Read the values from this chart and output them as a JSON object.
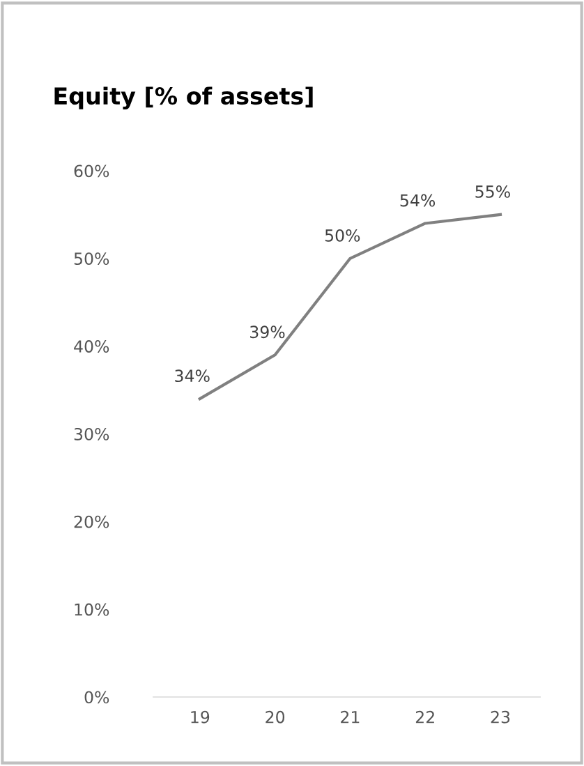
{
  "chart_data": {
    "type": "line",
    "title": "Equity [% of assets]",
    "categories": [
      "19",
      "20",
      "21",
      "22",
      "23"
    ],
    "series": [
      {
        "color": "#808080",
        "values": [
          34,
          39,
          50,
          54,
          55
        ],
        "value_labels": [
          "34%",
          "39%",
          "50%",
          "54%",
          "55%"
        ]
      }
    ],
    "ylim": [
      0,
      60
    ],
    "yticks": [
      {
        "value": 0,
        "label": "0%"
      },
      {
        "value": 10,
        "label": "10%"
      },
      {
        "value": 20,
        "label": "20%"
      },
      {
        "value": 30,
        "label": "30%"
      },
      {
        "value": 40,
        "label": "40%"
      },
      {
        "value": 50,
        "label": "50%"
      },
      {
        "value": 60,
        "label": "60%"
      }
    ],
    "grid": false,
    "marker": "none",
    "line_style": "solid"
  }
}
